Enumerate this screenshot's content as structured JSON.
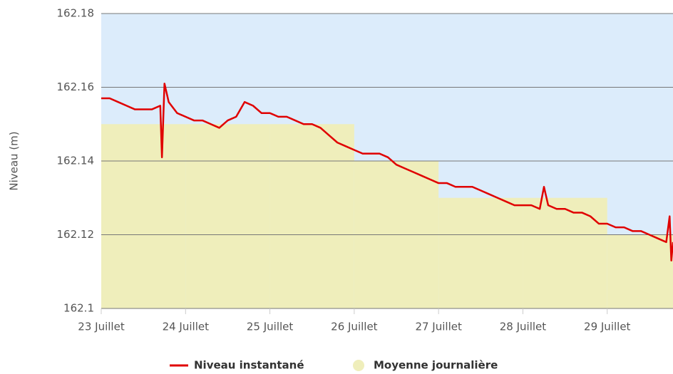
{
  "chart_data": {
    "type": "line",
    "y_label": "Niveau (m)",
    "xlim": [
      23,
      29.78
    ],
    "ylim": [
      162.1,
      162.18
    ],
    "yticks": [
      162.1,
      162.12,
      162.14,
      162.16,
      162.18
    ],
    "xticks": [
      {
        "value": 23,
        "label": "23 Juillet"
      },
      {
        "value": 24,
        "label": "24 Juillet"
      },
      {
        "value": 25,
        "label": "25 Juillet"
      },
      {
        "value": 26,
        "label": "26 Juillet"
      },
      {
        "value": 27,
        "label": "27 Juillet"
      },
      {
        "value": 28,
        "label": "28 Juillet"
      },
      {
        "value": 29,
        "label": "29 Juillet"
      }
    ],
    "background": "#dcecfb",
    "grid": true,
    "legend": "bottom",
    "series": [
      {
        "name": "Niveau instantané",
        "color": "#e00000",
        "kind": "line",
        "x": [
          23.0,
          23.1,
          23.2,
          23.3,
          23.4,
          23.5,
          23.6,
          23.7,
          23.72,
          23.75,
          23.8,
          23.9,
          24.0,
          24.1,
          24.2,
          24.3,
          24.4,
          24.5,
          24.6,
          24.7,
          24.8,
          24.9,
          25.0,
          25.1,
          25.2,
          25.3,
          25.4,
          25.5,
          25.6,
          25.7,
          25.8,
          25.9,
          26.0,
          26.1,
          26.2,
          26.3,
          26.4,
          26.5,
          26.6,
          26.7,
          26.8,
          26.9,
          27.0,
          27.1,
          27.2,
          27.3,
          27.4,
          27.5,
          27.6,
          27.7,
          27.8,
          27.9,
          28.0,
          28.1,
          28.2,
          28.25,
          28.3,
          28.4,
          28.5,
          28.6,
          28.7,
          28.8,
          28.9,
          29.0,
          29.1,
          29.2,
          29.3,
          29.4,
          29.5,
          29.6,
          29.7,
          29.74,
          29.76,
          29.78
        ],
        "values": [
          162.157,
          162.157,
          162.156,
          162.155,
          162.154,
          162.154,
          162.154,
          162.155,
          162.141,
          162.161,
          162.156,
          162.153,
          162.152,
          162.151,
          162.151,
          162.15,
          162.149,
          162.151,
          162.152,
          162.156,
          162.155,
          162.153,
          162.153,
          162.152,
          162.152,
          162.151,
          162.15,
          162.15,
          162.149,
          162.147,
          162.145,
          162.144,
          162.143,
          162.142,
          162.142,
          162.142,
          162.141,
          162.139,
          162.138,
          162.137,
          162.136,
          162.135,
          162.134,
          162.134,
          162.133,
          162.133,
          162.133,
          162.132,
          162.131,
          162.13,
          162.129,
          162.128,
          162.128,
          162.128,
          162.127,
          162.133,
          162.128,
          162.127,
          162.127,
          162.126,
          162.126,
          162.125,
          162.123,
          162.123,
          162.122,
          162.122,
          162.121,
          162.121,
          162.12,
          162.119,
          162.118,
          162.125,
          162.113,
          162.118
        ]
      },
      {
        "name": "Moyenne journalière",
        "color": "#efeebb",
        "kind": "step-area",
        "x": [
          23,
          24,
          25,
          26,
          27,
          28,
          29
        ],
        "values": [
          162.15,
          162.15,
          162.15,
          162.14,
          162.13,
          162.13,
          162.12
        ]
      }
    ]
  }
}
